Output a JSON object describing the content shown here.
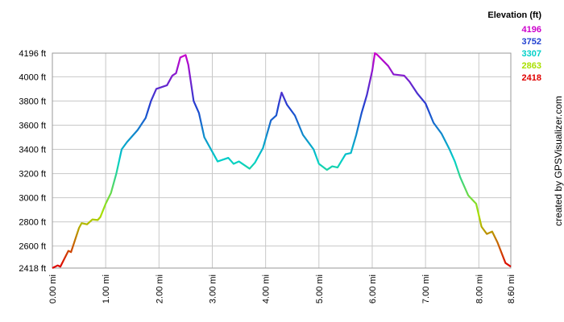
{
  "chart_data": {
    "type": "line",
    "x": [
      0,
      0.1,
      0.15,
      0.3,
      0.35,
      0.5,
      0.55,
      0.65,
      0.75,
      0.85,
      0.9,
      1.0,
      1.1,
      1.2,
      1.3,
      1.4,
      1.6,
      1.75,
      1.85,
      1.95,
      2.15,
      2.25,
      2.32,
      2.4,
      2.5,
      2.55,
      2.65,
      2.75,
      2.85,
      3.0,
      3.1,
      3.3,
      3.4,
      3.5,
      3.7,
      3.8,
      3.95,
      4.1,
      4.2,
      4.25,
      4.3,
      4.4,
      4.55,
      4.7,
      4.9,
      5.0,
      5.15,
      5.25,
      5.35,
      5.5,
      5.6,
      5.7,
      5.8,
      5.9,
      6.0,
      6.05,
      6.1,
      6.3,
      6.4,
      6.6,
      6.7,
      6.85,
      7.0,
      7.15,
      7.3,
      7.45,
      7.55,
      7.65,
      7.7,
      7.8,
      7.95,
      8.05,
      8.15,
      8.25,
      8.35,
      8.5,
      8.6
    ],
    "values": [
      2418,
      2440,
      2430,
      2560,
      2550,
      2750,
      2790,
      2780,
      2820,
      2815,
      2840,
      2950,
      3040,
      3200,
      3400,
      3460,
      3560,
      3660,
      3800,
      3900,
      3930,
      4010,
      4030,
      4160,
      4180,
      4100,
      3800,
      3700,
      3500,
      3380,
      3300,
      3330,
      3280,
      3300,
      3240,
      3290,
      3410,
      3640,
      3680,
      3780,
      3870,
      3770,
      3680,
      3520,
      3400,
      3280,
      3230,
      3260,
      3250,
      3360,
      3370,
      3520,
      3700,
      3850,
      4050,
      4196,
      4180,
      4090,
      4020,
      4010,
      3960,
      3860,
      3780,
      3620,
      3530,
      3400,
      3300,
      3170,
      3120,
      3020,
      2950,
      2760,
      2700,
      2720,
      2630,
      2460,
      2430
    ],
    "xlim": [
      0,
      8.6
    ],
    "xticks": [
      {
        "value": 0,
        "label": "0.00 mi"
      },
      {
        "value": 1,
        "label": "1.00 mi"
      },
      {
        "value": 2,
        "label": "2.00 mi"
      },
      {
        "value": 3,
        "label": "3.00 mi"
      },
      {
        "value": 4,
        "label": "4.00 mi"
      },
      {
        "value": 5,
        "label": "5.00 mi"
      },
      {
        "value": 6,
        "label": "6.00 mi"
      },
      {
        "value": 7,
        "label": "7.00 mi"
      },
      {
        "value": 8,
        "label": "8.00 mi"
      },
      {
        "value": 8.6,
        "label": "8.60 mi"
      }
    ],
    "ylim": [
      2418,
      4196
    ],
    "yticks": [
      {
        "value": 4196,
        "label": "4196 ft"
      },
      {
        "value": 4000,
        "label": "4000 ft"
      },
      {
        "value": 3800,
        "label": "3800 ft"
      },
      {
        "value": 3600,
        "label": "3600 ft"
      },
      {
        "value": 3400,
        "label": "3400 ft"
      },
      {
        "value": 3200,
        "label": "3200 ft"
      },
      {
        "value": 3000,
        "label": "3000 ft"
      },
      {
        "value": 2800,
        "label": "2800 ft"
      },
      {
        "value": 2600,
        "label": "2600 ft"
      },
      {
        "value": 2418,
        "label": "2418 ft"
      }
    ],
    "grid": true,
    "color_scale": {
      "title": "Elevation (ft)",
      "stops": [
        {
          "value": 4196,
          "color": "#cc00cc"
        },
        {
          "value": 3752,
          "color": "#2040d0"
        },
        {
          "value": 3307,
          "color": "#00d0c8"
        },
        {
          "value": 2863,
          "color": "#a8e000"
        },
        {
          "value": 2418,
          "color": "#e00000"
        }
      ]
    },
    "credit": "created by GPSVisualizer.com"
  }
}
